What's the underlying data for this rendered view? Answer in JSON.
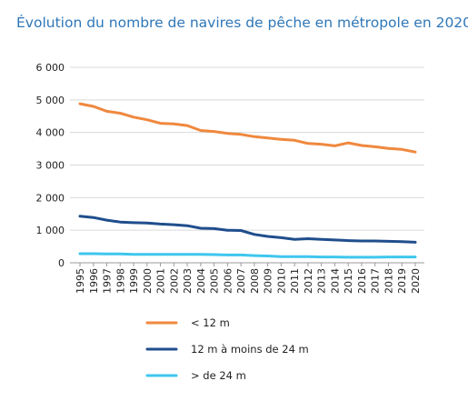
{
  "chart_data": {
    "type": "line",
    "title": "Évolution du nombre de navires de pêche en métropole en 2020",
    "xlabel": "",
    "ylabel": "",
    "x": [
      "1995",
      "1996",
      "1997",
      "1998",
      "1999",
      "2000",
      "2001",
      "2002",
      "2003",
      "2004",
      "2005",
      "2006",
      "2007",
      "2008",
      "2009",
      "2010",
      "2011",
      "2012",
      "2013",
      "2014",
      "2015",
      "2016",
      "2017",
      "2018",
      "2019",
      "2020"
    ],
    "ylim": [
      0,
      6000
    ],
    "yticks": [
      0,
      1000,
      2000,
      3000,
      4000,
      5000,
      6000
    ],
    "ytick_labels": [
      "0",
      "1 000",
      "2 000",
      "3 000",
      "4 000",
      "5 000",
      "6 000"
    ],
    "grid": true,
    "legend_position": "bottom",
    "series": [
      {
        "name": "< 12 m",
        "color": "#f0883e",
        "values": [
          4880,
          4800,
          4650,
          4590,
          4470,
          4390,
          4280,
          4260,
          4210,
          4060,
          4030,
          3970,
          3940,
          3870,
          3830,
          3790,
          3760,
          3660,
          3640,
          3590,
          3680,
          3600,
          3560,
          3510,
          3480,
          3400
        ]
      },
      {
        "name": "12 m à moins de 24 m",
        "color": "#1f4e8c",
        "values": [
          1430,
          1390,
          1310,
          1250,
          1230,
          1220,
          1190,
          1170,
          1140,
          1060,
          1050,
          1000,
          990,
          870,
          810,
          770,
          720,
          740,
          720,
          700,
          680,
          670,
          670,
          660,
          650,
          630
        ]
      },
      {
        "name": "> de 24 m",
        "color": "#3ec6ee",
        "values": [
          280,
          280,
          270,
          270,
          260,
          260,
          260,
          260,
          260,
          260,
          250,
          240,
          240,
          220,
          210,
          190,
          190,
          190,
          180,
          180,
          170,
          170,
          170,
          180,
          180,
          180
        ]
      }
    ]
  }
}
